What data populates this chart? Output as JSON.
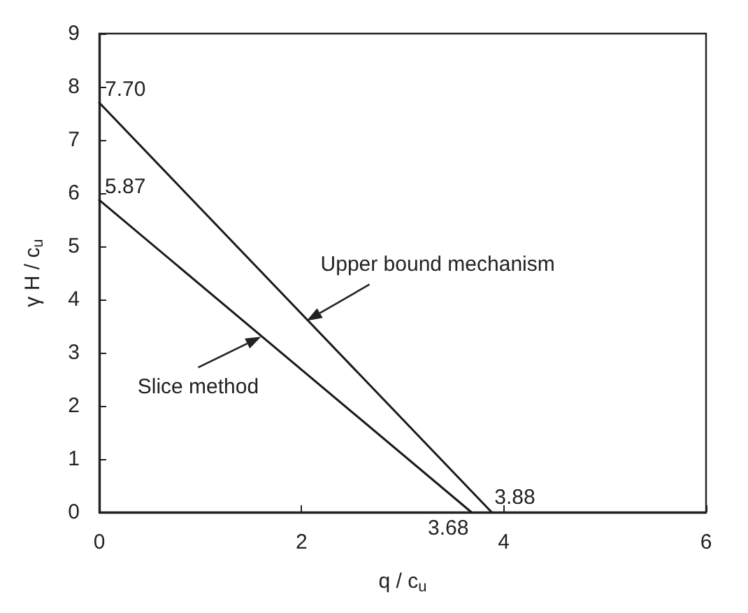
{
  "chart_data": {
    "type": "line",
    "xlabel": "q / c$_{u}$",
    "ylabel": "γ H / c$_{u}$",
    "xlim": [
      0,
      6
    ],
    "xticks": [
      0,
      2,
      4,
      6
    ],
    "ylim": [
      0,
      9
    ],
    "yticks": [
      0,
      1,
      2,
      3,
      4,
      5,
      6,
      7,
      8,
      9
    ],
    "marker": "none",
    "line_style": "solid",
    "series": [
      {
        "color": "#1a1a1a",
        "x": [
          0,
          3.88
        ],
        "values": [
          7.7,
          0
        ]
      },
      {
        "color": "#1a1a1a",
        "x": [
          0,
          3.68
        ],
        "values": [
          5.87,
          0
        ]
      }
    ],
    "annotations": [
      {
        "text": "Upper bound mechanism",
        "x": 2.05,
        "y": 3.6
      },
      {
        "text": "Slice method",
        "x": 1.6,
        "y": 3.3
      },
      {
        "text": "7.70",
        "x": 0,
        "y": 7.7
      },
      {
        "text": "5.87",
        "x": 0,
        "y": 5.87
      },
      {
        "text": "3.88",
        "x": 3.88,
        "y": 0
      },
      {
        "text": "3.68",
        "x": 3.68,
        "y": 0
      }
    ]
  }
}
